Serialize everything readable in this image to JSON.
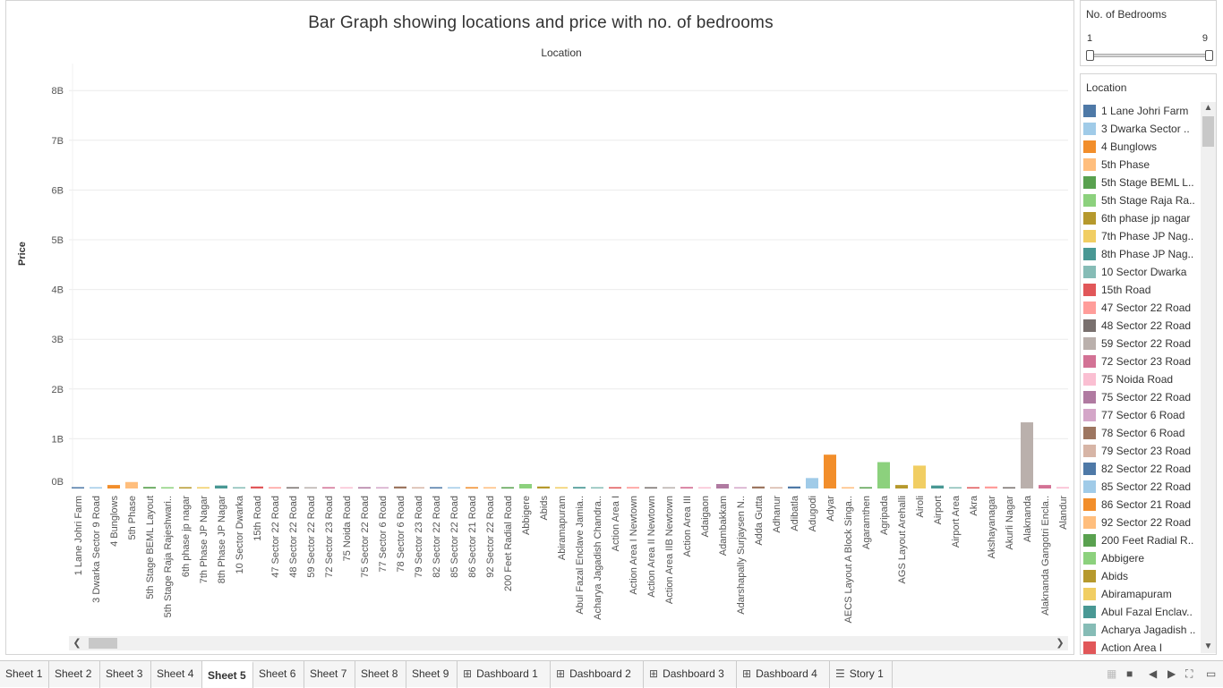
{
  "chart_data": {
    "type": "bar",
    "title": "Bar Graph showing locations and price with no. of bedrooms",
    "header_label": "Location",
    "ylabel": "Price",
    "ylim": [
      0,
      8.5
    ],
    "yticks": [
      0,
      1,
      2,
      3,
      4,
      5,
      6,
      7,
      8
    ],
    "ytick_labels": [
      "0B",
      "1B",
      "2B",
      "3B",
      "4B",
      "5B",
      "6B",
      "7B",
      "8B"
    ],
    "grid": true,
    "categories": [
      "1 Lane Johri Farm",
      "3 Dwarka Sector 9 Road",
      "4 Bunglows",
      "5th Phase",
      "5th Stage BEML Layout",
      "5th Stage Raja Rajeshwari..",
      "6th phase jp nagar",
      "7th Phase JP Nagar",
      "8th Phase JP Nagar",
      "10 Sector Dwarka",
      "15th Road",
      "47 Sector 22 Road",
      "48 Sector 22 Road",
      "59 Sector 22 Road",
      "72 Sector 23 Road",
      "75 Noida Road",
      "75 Sector 22 Road",
      "77 Sector 6 Road",
      "78 Sector 6 Road",
      "79 Sector 23 Road",
      "82 Sector 22 Road",
      "85 Sector 22 Road",
      "86 Sector 21 Road",
      "92 Sector 22 Road",
      "200 Feet Radial Road",
      "Abbigere",
      "Abids",
      "Abiramapuram",
      "Abul Fazal Enclave Jamia..",
      "Acharya Jagadish Chandra..",
      "Action Area I",
      "Action Area I Newtown",
      "Action Area II Newtown",
      "Action Area IIB Newtown",
      "Action Area III",
      "Adaigaon",
      "Adambakkam",
      "Adarshapally Surjaysen N..",
      "Adda Gutta",
      "Adhanur",
      "Adibatla",
      "Adugodi",
      "Adyar",
      "AECS Layout A Block Singa..",
      "Agaramthen",
      "Agripada",
      "AGS Layout Arehalli",
      "Airoli",
      "Airport",
      "Airport Area",
      "Akra",
      "Akshayanagar",
      "Akurli Nagar",
      "Alaknanda",
      "Alaknanda Gangotri Encla..",
      "Alandur"
    ],
    "values": [
      0.02,
      0.01,
      0.07,
      0.13,
      0.03,
      0.02,
      0.005,
      0.02,
      0.06,
      0.02,
      0.04,
      0.02,
      0.005,
      0.02,
      0.005,
      0.01,
      0.02,
      0.02,
      0.04,
      0.005,
      0.005,
      0.005,
      0.02,
      0.02,
      0.005,
      0.09,
      0.04,
      0.005,
      0.03,
      0.005,
      0.005,
      0.03,
      0.02,
      0.005,
      0.03,
      0.005,
      0.09,
      0.005,
      0.04,
      0.02,
      0.04,
      0.21,
      0.68,
      0.02,
      0.02,
      0.53,
      0.07,
      0.46,
      0.06,
      0.005,
      0.005,
      0.04,
      0.02,
      1.33,
      0.07,
      0.03
    ],
    "colors": [
      "#4e79a7",
      "#a0cbe8",
      "#f28e2b",
      "#ffbe7d",
      "#59a14f",
      "#8cd17d",
      "#b6992d",
      "#f1ce63",
      "#499894",
      "#86bcb6",
      "#e15759",
      "#ff9d9a",
      "#79706e",
      "#bab0ac",
      "#d37295",
      "#fabfd2",
      "#b07aa1",
      "#d4a6c8",
      "#9d7660",
      "#d7b5a6",
      "#4e79a7",
      "#a0cbe8",
      "#f28e2b",
      "#ffbe7d",
      "#59a14f",
      "#8cd17d",
      "#b6992d",
      "#f1ce63",
      "#499894",
      "#86bcb6",
      "#e15759",
      "#ff9d9a",
      "#79706e",
      "#bab0ac",
      "#d37295",
      "#fabfd2",
      "#b07aa1",
      "#d4a6c8",
      "#9d7660",
      "#d7b5a6",
      "#4e79a7",
      "#a0cbe8",
      "#f28e2b",
      "#ffbe7d",
      "#59a14f",
      "#8cd17d",
      "#b6992d",
      "#f1ce63",
      "#499894",
      "#86bcb6",
      "#e15759",
      "#ff9d9a",
      "#79706e",
      "#bab0ac",
      "#d37295",
      "#fabfd2"
    ]
  },
  "filters": {
    "bedrooms": {
      "title": "No. of Bedrooms",
      "min_label": "1",
      "max_label": "9",
      "min": 1,
      "max": 9
    }
  },
  "legend": {
    "title": "Location",
    "items": [
      {
        "label": "1 Lane Johri Farm",
        "color": "#4e79a7"
      },
      {
        "label": "3 Dwarka Sector ..",
        "color": "#a0cbe8"
      },
      {
        "label": "4 Bunglows",
        "color": "#f28e2b"
      },
      {
        "label": "5th Phase",
        "color": "#ffbe7d"
      },
      {
        "label": "5th Stage BEML L..",
        "color": "#59a14f"
      },
      {
        "label": "5th Stage Raja Ra..",
        "color": "#8cd17d"
      },
      {
        "label": "6th phase jp nagar",
        "color": "#b6992d"
      },
      {
        "label": "7th Phase JP Nag..",
        "color": "#f1ce63"
      },
      {
        "label": "8th Phase JP Nag..",
        "color": "#499894"
      },
      {
        "label": "10 Sector Dwarka",
        "color": "#86bcb6"
      },
      {
        "label": "15th Road",
        "color": "#e15759"
      },
      {
        "label": "47 Sector 22 Road",
        "color": "#ff9d9a"
      },
      {
        "label": "48 Sector 22 Road",
        "color": "#79706e"
      },
      {
        "label": "59 Sector 22 Road",
        "color": "#bab0ac"
      },
      {
        "label": "72 Sector 23 Road",
        "color": "#d37295"
      },
      {
        "label": "75 Noida Road",
        "color": "#fabfd2"
      },
      {
        "label": "75 Sector 22 Road",
        "color": "#b07aa1"
      },
      {
        "label": "77 Sector 6 Road",
        "color": "#d4a6c8"
      },
      {
        "label": "78 Sector 6 Road",
        "color": "#9d7660"
      },
      {
        "label": "79 Sector 23 Road",
        "color": "#d7b5a6"
      },
      {
        "label": "82 Sector 22 Road",
        "color": "#4e79a7"
      },
      {
        "label": "85 Sector 22 Road",
        "color": "#a0cbe8"
      },
      {
        "label": "86 Sector 21 Road",
        "color": "#f28e2b"
      },
      {
        "label": "92 Sector 22 Road",
        "color": "#ffbe7d"
      },
      {
        "label": "200 Feet Radial R..",
        "color": "#59a14f"
      },
      {
        "label": "Abbigere",
        "color": "#8cd17d"
      },
      {
        "label": "Abids",
        "color": "#b6992d"
      },
      {
        "label": "Abiramapuram",
        "color": "#f1ce63"
      },
      {
        "label": "Abul Fazal Enclav..",
        "color": "#499894"
      },
      {
        "label": "Acharya Jagadish ..",
        "color": "#86bcb6"
      },
      {
        "label": "Action Area I",
        "color": "#e15759"
      }
    ]
  },
  "tabs": [
    {
      "label": "Sheet 1",
      "icon": ""
    },
    {
      "label": "Sheet 2",
      "icon": ""
    },
    {
      "label": "Sheet 3",
      "icon": ""
    },
    {
      "label": "Sheet 4",
      "icon": ""
    },
    {
      "label": "Sheet 5",
      "icon": "",
      "active": true
    },
    {
      "label": "Sheet 6",
      "icon": ""
    },
    {
      "label": "Sheet 7",
      "icon": ""
    },
    {
      "label": "Sheet 8",
      "icon": ""
    },
    {
      "label": "Sheet 9",
      "icon": ""
    },
    {
      "label": "Dashboard 1",
      "icon": "dashboard-icon"
    },
    {
      "label": "Dashboard 2",
      "icon": "dashboard-icon"
    },
    {
      "label": "Dashboard 3",
      "icon": "dashboard-icon"
    },
    {
      "label": "Dashboard 4",
      "icon": "dashboard-icon"
    },
    {
      "label": "Story 1",
      "icon": "story-icon"
    }
  ]
}
